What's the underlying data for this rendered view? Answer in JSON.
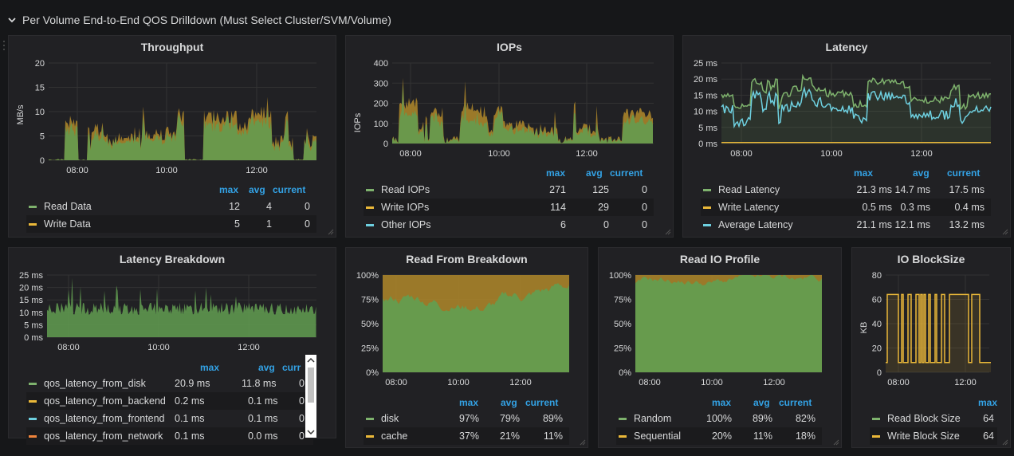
{
  "row": {
    "title": "Per Volume End-to-End QOS Drilldown (Must Select Cluster/SVM/Volume)"
  },
  "colors": {
    "read": "#7eb26d",
    "write": "#eab839",
    "other": "#6ed0e0",
    "header": "#33a2e5",
    "bg": "#212124"
  },
  "legend_headers": {
    "max": "max",
    "avg": "avg",
    "current": "current"
  },
  "throughput": {
    "title": "Throughput",
    "chart_data": {
      "type": "area",
      "ylabel": "MB/s",
      "yticks": [
        "20",
        "15",
        "10",
        "5",
        "0"
      ],
      "ylim": [
        0,
        20
      ],
      "xticks": [
        "08:00",
        "10:00",
        "12:00"
      ]
    },
    "series": [
      {
        "name": "Read Data",
        "max": "12",
        "avg": "4",
        "current": "0"
      },
      {
        "name": "Write Data",
        "max": "5",
        "avg": "1",
        "current": "0"
      }
    ]
  },
  "iops": {
    "title": "IOPs",
    "chart_data": {
      "type": "area",
      "ylabel": "IOPs",
      "yticks": [
        "400",
        "300",
        "200",
        "100",
        "0"
      ],
      "ylim": [
        0,
        400
      ],
      "xticks": [
        "08:00",
        "10:00",
        "12:00"
      ]
    },
    "series": [
      {
        "name": "Read IOPs",
        "max": "271",
        "avg": "125",
        "current": "0"
      },
      {
        "name": "Write IOPs",
        "max": "114",
        "avg": "29",
        "current": "0"
      },
      {
        "name": "Other IOPs",
        "max": "6",
        "avg": "0",
        "current": "0"
      }
    ]
  },
  "latency": {
    "title": "Latency",
    "chart_data": {
      "type": "line",
      "yticks": [
        "25 ms",
        "20 ms",
        "15 ms",
        "10 ms",
        "5 ms",
        "0 ms"
      ],
      "ylim": [
        0,
        25
      ],
      "xticks": [
        "08:00",
        "10:00",
        "12:00"
      ]
    },
    "series": [
      {
        "name": "Read Latency",
        "max": "21.3 ms",
        "avg": "14.7 ms",
        "current": "17.5 ms"
      },
      {
        "name": "Write Latency",
        "max": "0.5 ms",
        "avg": "0.3 ms",
        "current": "0.4 ms"
      },
      {
        "name": "Average Latency",
        "max": "21.1 ms",
        "avg": "12.1 ms",
        "current": "13.2 ms"
      }
    ]
  },
  "latency_breakdown": {
    "title": "Latency Breakdown",
    "chart_data": {
      "type": "area",
      "yticks": [
        "25 ms",
        "20 ms",
        "15 ms",
        "10 ms",
        "5 ms",
        "0 ms"
      ],
      "ylim": [
        0,
        25
      ],
      "xticks": [
        "08:00",
        "10:00",
        "12:00"
      ]
    },
    "header_current": "curr",
    "series": [
      {
        "name": "qos_latency_from_disk",
        "max": "20.9 ms",
        "avg": "11.8 ms",
        "current": "0"
      },
      {
        "name": "qos_latency_from_backend",
        "max": "0.2 ms",
        "avg": "0.1 ms",
        "current": "0"
      },
      {
        "name": "qos_latency_from_frontend",
        "max": "0.1 ms",
        "avg": "0.1 ms",
        "current": "0"
      },
      {
        "name": "qos_latency_from_network",
        "max": "0.1 ms",
        "avg": "0.0 ms",
        "current": "0"
      }
    ]
  },
  "read_from": {
    "title": "Read From Breakdown",
    "chart_data": {
      "type": "area",
      "yticks": [
        "100%",
        "75%",
        "50%",
        "25%",
        "0%"
      ],
      "ylim": [
        0,
        100
      ],
      "xticks": [
        "08:00",
        "10:00",
        "12:00"
      ]
    },
    "series": [
      {
        "name": "disk",
        "max": "97%",
        "avg": "79%",
        "current": "89%"
      },
      {
        "name": "cache",
        "max": "37%",
        "avg": "21%",
        "current": "11%"
      }
    ]
  },
  "read_io": {
    "title": "Read IO Profile",
    "chart_data": {
      "type": "area",
      "yticks": [
        "100%",
        "75%",
        "50%",
        "25%",
        "0%"
      ],
      "ylim": [
        0,
        100
      ],
      "xticks": [
        "08:00",
        "10:00",
        "12:00"
      ]
    },
    "series": [
      {
        "name": "Random",
        "max": "100%",
        "avg": "89%",
        "current": "82%"
      },
      {
        "name": "Sequential",
        "max": "20%",
        "avg": "11%",
        "current": "18%"
      }
    ]
  },
  "io_blocksize": {
    "title": "IO BlockSize",
    "chart_data": {
      "type": "line",
      "ylabel": "KB",
      "yticks": [
        "80",
        "60",
        "40",
        "20",
        "0"
      ],
      "ylim": [
        0,
        80
      ],
      "xticks": [
        "08:00",
        "12:00"
      ]
    },
    "series": [
      {
        "name": "Read Block Size",
        "max": "64"
      },
      {
        "name": "Write Block Size",
        "max": "64"
      }
    ]
  }
}
